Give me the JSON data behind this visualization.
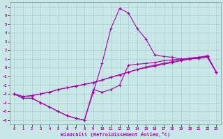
{
  "xlabel": "Windchill (Refroidissement éolien,°C)",
  "bg_color": "#c8e8e8",
  "grid_color": "#b0cccc",
  "line_color": "#aa00aa",
  "xlim": [
    -0.5,
    23.5
  ],
  "ylim": [
    -6.5,
    7.5
  ],
  "xticks": [
    0,
    1,
    2,
    3,
    4,
    5,
    6,
    7,
    8,
    9,
    10,
    11,
    12,
    13,
    14,
    15,
    16,
    17,
    18,
    19,
    20,
    21,
    22,
    23
  ],
  "yticks": [
    -6,
    -5,
    -4,
    -3,
    -2,
    -1,
    0,
    1,
    2,
    3,
    4,
    5,
    6,
    7
  ],
  "curves": [
    {
      "x": [
        0,
        1,
        2,
        3,
        4,
        5,
        6,
        7,
        8,
        9,
        10,
        11,
        12,
        13,
        14,
        15,
        16,
        17,
        18,
        19,
        20,
        21,
        22,
        23
      ],
      "y": [
        -3.0,
        -3.5,
        -3.5,
        -4.0,
        -4.5,
        -5.0,
        -5.5,
        -5.8,
        -6.0,
        -2.8,
        0.5,
        4.5,
        6.8,
        6.3,
        4.5,
        3.3,
        1.5,
        1.3,
        1.2,
        1.0,
        1.0,
        1.1,
        1.2,
        -0.5
      ]
    },
    {
      "x": [
        0,
        1,
        2,
        3,
        4,
        5,
        6,
        7,
        8,
        9,
        10,
        11,
        12,
        13,
        14,
        15,
        16,
        17,
        18,
        19,
        20,
        21,
        22,
        23
      ],
      "y": [
        -3.0,
        -3.5,
        -3.5,
        -4.0,
        -4.5,
        -5.0,
        -5.5,
        -5.8,
        -6.0,
        -2.5,
        -2.8,
        -2.5,
        -2.0,
        0.3,
        0.4,
        0.5,
        0.6,
        0.8,
        0.9,
        1.0,
        1.1,
        1.2,
        1.3,
        -0.5
      ]
    },
    {
      "x": [
        0,
        1,
        2,
        3,
        4,
        5,
        6,
        7,
        8,
        9,
        10,
        11,
        12,
        13,
        14,
        15,
        16,
        17,
        18,
        19,
        20,
        21,
        22,
        23
      ],
      "y": [
        -3.0,
        -3.3,
        -3.2,
        -3.0,
        -2.8,
        -2.5,
        -2.3,
        -2.1,
        -1.9,
        -1.7,
        -1.4,
        -1.1,
        -0.8,
        -0.5,
        -0.2,
        0.1,
        0.3,
        0.5,
        0.7,
        0.9,
        1.1,
        1.2,
        1.4,
        -0.5
      ]
    },
    {
      "x": [
        0,
        1,
        2,
        3,
        4,
        5,
        6,
        7,
        8,
        9,
        10,
        11,
        12,
        13,
        14,
        15,
        16,
        17,
        18,
        19,
        20,
        21,
        22,
        23
      ],
      "y": [
        -3.0,
        -3.3,
        -3.2,
        -3.0,
        -2.8,
        -2.5,
        -2.3,
        -2.1,
        -1.9,
        -1.7,
        -1.4,
        -1.1,
        -0.8,
        -0.5,
        -0.2,
        0.0,
        0.2,
        0.4,
        0.6,
        0.8,
        1.0,
        1.1,
        1.3,
        -0.5
      ]
    }
  ]
}
